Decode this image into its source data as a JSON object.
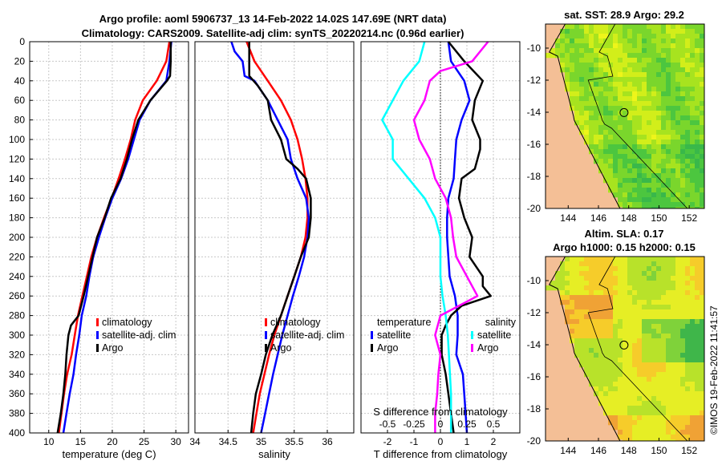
{
  "title": {
    "line1": "Argo profile: aoml 5906737_13 14-Feb-2022 14.02S 147.69E (NRT data)",
    "line2": "Climatology: CARS2009. Satellite-adj clim: synTS_20220214.nc (0.96d earlier)"
  },
  "watermark": "©IMOS 19-Feb-2022 11:41:57",
  "colors": {
    "climatology": "#ff0000",
    "satellite": "#0000ff",
    "argo": "#000000",
    "cyan": "#00ffff",
    "magenta": "#ff00ff",
    "land": "#f4bf96"
  },
  "chart_data": [
    {
      "id": "temperature",
      "type": "line",
      "xlabel": "temperature (deg C)",
      "ylabel": "",
      "xlim": [
        7,
        32
      ],
      "ylim": [
        0,
        400
      ],
      "y_reversed": true,
      "xticks": [
        10,
        15,
        20,
        25,
        30
      ],
      "yticks": [
        0,
        20,
        40,
        60,
        80,
        100,
        120,
        140,
        160,
        180,
        200,
        220,
        240,
        260,
        280,
        300,
        320,
        340,
        360,
        380,
        400
      ],
      "legend": [
        "climatology",
        "satellite-adj. clim",
        "Argo"
      ],
      "series": [
        {
          "name": "climatology",
          "color": "#ff0000",
          "depth": [
            0,
            20,
            40,
            60,
            80,
            100,
            120,
            140,
            160,
            180,
            200,
            220,
            240,
            260,
            280,
            300,
            320,
            340,
            360,
            380,
            400
          ],
          "values": [
            29.0,
            28.5,
            27.0,
            24.8,
            23.6,
            22.9,
            22.0,
            21.0,
            19.9,
            18.7,
            17.6,
            16.7,
            16.0,
            15.3,
            14.6,
            14.1,
            13.6,
            12.9,
            12.4,
            12.0,
            11.6
          ]
        },
        {
          "name": "satellite-adj. clim",
          "color": "#0000ff",
          "depth": [
            0,
            20,
            40,
            60,
            80,
            100,
            120,
            140,
            160,
            180,
            200,
            220,
            240,
            260,
            280,
            300,
            320,
            340,
            360,
            380,
            400
          ],
          "values": [
            29.3,
            29.0,
            28.5,
            26.0,
            24.3,
            23.4,
            22.5,
            21.4,
            20.0,
            18.9,
            17.9,
            17.0,
            16.4,
            15.9,
            15.2,
            14.8,
            14.3,
            13.9,
            13.3,
            12.8,
            12.3
          ]
        },
        {
          "name": "Argo",
          "color": "#000000",
          "depth": [
            0,
            20,
            35,
            40,
            60,
            80,
            100,
            120,
            140,
            160,
            180,
            200,
            220,
            240,
            260,
            280,
            290,
            300,
            320,
            340,
            360,
            380,
            400
          ],
          "values": [
            29.2,
            29.2,
            29.1,
            28.6,
            26.0,
            24.1,
            23.1,
            22.3,
            21.3,
            19.8,
            18.8,
            17.6,
            16.9,
            16.2,
            15.5,
            14.7,
            13.5,
            13.1,
            12.8,
            12.6,
            12.3,
            11.9,
            11.4
          ]
        }
      ]
    },
    {
      "id": "salinity",
      "type": "line",
      "xlabel": "salinity",
      "xlim": [
        34,
        36.4
      ],
      "ylim": [
        0,
        400
      ],
      "y_reversed": true,
      "xticks": [
        34,
        34.5,
        35,
        35.5,
        36
      ],
      "legend": [
        "climatology",
        "satellite-adj. clim",
        "Argo"
      ],
      "series": [
        {
          "name": "climatology",
          "color": "#ff0000",
          "depth": [
            0,
            20,
            40,
            60,
            80,
            100,
            120,
            140,
            160,
            180,
            200,
            220,
            240,
            260,
            280,
            300,
            320,
            340,
            360,
            380,
            400
          ],
          "values": [
            34.78,
            34.9,
            35.1,
            35.3,
            35.45,
            35.55,
            35.62,
            35.67,
            35.7,
            35.7,
            35.67,
            35.6,
            35.5,
            35.4,
            35.3,
            35.2,
            35.12,
            35.05,
            34.98,
            34.93,
            34.88
          ]
        },
        {
          "name": "satellite-adj. clim",
          "color": "#0000ff",
          "depth": [
            0,
            10,
            20,
            35,
            40,
            60,
            80,
            100,
            120,
            140,
            160,
            180,
            200,
            220,
            240,
            260,
            280,
            300,
            320,
            340,
            360,
            380,
            400
          ],
          "values": [
            34.55,
            34.6,
            34.72,
            34.75,
            34.9,
            35.1,
            35.25,
            35.4,
            35.45,
            35.55,
            35.68,
            35.72,
            35.7,
            35.65,
            35.57,
            35.48,
            35.4,
            35.32,
            35.25,
            35.18,
            35.12,
            35.06,
            35.0
          ]
        },
        {
          "name": "Argo",
          "color": "#000000",
          "depth": [
            0,
            20,
            35,
            45,
            60,
            80,
            100,
            120,
            130,
            140,
            160,
            180,
            200,
            220,
            240,
            260,
            280,
            300,
            320,
            340,
            360,
            380,
            400
          ],
          "values": [
            34.82,
            34.82,
            34.82,
            34.95,
            35.1,
            35.15,
            35.3,
            35.38,
            35.55,
            35.68,
            35.75,
            35.75,
            35.72,
            35.6,
            35.5,
            35.4,
            35.3,
            35.17,
            35.07,
            35.0,
            34.92,
            34.88,
            34.85
          ]
        }
      ]
    },
    {
      "id": "difference",
      "type": "line",
      "xlabel": "T difference from climatology",
      "xlabel2": "S difference from climatology",
      "xlim": [
        -3,
        3
      ],
      "ylim": [
        0,
        400
      ],
      "y_reversed": true,
      "xticks": [
        -2,
        -1,
        0,
        1,
        2
      ],
      "xtick_labels": [
        "-2",
        "-1",
        "0",
        "1",
        "2"
      ],
      "s_ticks": [
        -0.5,
        -0.25,
        0,
        0.25,
        0.5
      ],
      "s_tick_labels": [
        "-0.5",
        "-0.25",
        "0",
        "0.25",
        "0.5"
      ],
      "legend_temperature_title": "temperature",
      "legend_salinity_title": "salinity",
      "legend_temperature": [
        "satellite",
        "Argo"
      ],
      "legend_salinity": [
        "satellite",
        "Argo"
      ],
      "series": [
        {
          "name": "T satellite",
          "color": "#0000ff",
          "depth": [
            0,
            20,
            40,
            60,
            80,
            100,
            120,
            140,
            160,
            180,
            200,
            220,
            240,
            260,
            280,
            300,
            320,
            340,
            360,
            380,
            400
          ],
          "values": [
            0.3,
            0.4,
            0.9,
            1.1,
            0.8,
            0.6,
            0.55,
            0.5,
            0.3,
            0.25,
            0.25,
            0.3,
            0.35,
            0.55,
            0.65,
            0.65,
            0.6,
            0.85,
            0.9,
            0.95,
            1.0
          ]
        },
        {
          "name": "T Argo",
          "color": "#000000",
          "depth": [
            0,
            20,
            40,
            60,
            80,
            100,
            110,
            120,
            130,
            140,
            160,
            180,
            200,
            220,
            240,
            250,
            260,
            270,
            280,
            290,
            300,
            320,
            340,
            360,
            380,
            400
          ],
          "values": [
            0.3,
            0.9,
            1.6,
            1.3,
            1.2,
            1.5,
            1.5,
            1.4,
            1.3,
            0.8,
            0.7,
            0.9,
            1.2,
            1.1,
            1.6,
            1.6,
            1.9,
            0.8,
            0.4,
            0.2,
            0.05,
            0.05,
            0.2,
            0.3,
            0.4,
            0.5
          ]
        },
        {
          "name": "S satellite",
          "color": "#00ffff",
          "depth": [
            0,
            20,
            40,
            60,
            80,
            100,
            120,
            140,
            160,
            180,
            200,
            220,
            240,
            260,
            280,
            300,
            320,
            340,
            360,
            380,
            400
          ],
          "values": [
            -0.15,
            -0.2,
            -0.35,
            -0.45,
            -0.55,
            -0.45,
            -0.45,
            -0.3,
            -0.15,
            -0.05,
            0.0,
            0.0,
            0.0,
            0.02,
            0.05,
            0.07,
            0.08,
            0.09,
            0.1,
            0.1,
            0.1
          ]
        },
        {
          "name": "S Argo",
          "color": "#ff00ff",
          "depth": [
            0,
            20,
            30,
            40,
            60,
            80,
            100,
            120,
            140,
            160,
            180,
            200,
            220,
            240,
            260,
            280,
            300,
            320,
            340,
            360,
            380,
            400
          ],
          "values": [
            0.45,
            0.3,
            0.0,
            -0.1,
            -0.15,
            -0.25,
            -0.2,
            -0.1,
            -0.05,
            0.05,
            0.1,
            0.12,
            0.15,
            0.25,
            0.35,
            0.0,
            -0.05,
            0.0,
            -0.02,
            -0.03,
            -0.05,
            -0.05
          ]
        }
      ]
    },
    {
      "id": "sst_map",
      "type": "heatmap",
      "title": "sat. SST: 28.9 Argo: 29.2",
      "xticks": [
        144,
        146,
        148,
        150,
        152
      ],
      "yticks": [
        -10,
        -12,
        -14,
        -16,
        -18,
        -20
      ],
      "xlim": [
        142.5,
        153
      ],
      "ylim": [
        -20,
        -8.5
      ],
      "profile_marker": {
        "lon": 147.69,
        "lat": -14.02
      },
      "palette": [
        "#39b84a",
        "#4cc63f",
        "#7ad62c",
        "#a7e31f",
        "#d2ee1a",
        "#eef51a"
      ]
    },
    {
      "id": "sla_map",
      "type": "heatmap",
      "title1": "Altim. SLA: 0.17",
      "title2": "Argo h1000: 0.15 h2000: 0.15",
      "xticks": [
        144,
        146,
        148,
        150,
        152
      ],
      "yticks": [
        -10,
        -12,
        -14,
        -16,
        -18,
        -20
      ],
      "xlim": [
        142.5,
        153
      ],
      "ylim": [
        -20,
        -8.5
      ],
      "profile_marker": {
        "lon": 147.69,
        "lat": -14.02
      },
      "palette": [
        "#3fb64a",
        "#7fd23a",
        "#b8e22a",
        "#e6ee25",
        "#f6cc2a",
        "#f0a235"
      ]
    }
  ]
}
